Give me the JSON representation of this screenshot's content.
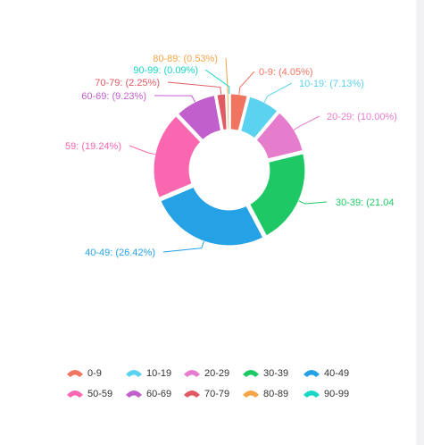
{
  "chart_data": {
    "type": "pie",
    "variant": "donut",
    "categories": [
      "0-9",
      "10-19",
      "20-29",
      "30-39",
      "40-49",
      "50-59",
      "60-69",
      "70-79",
      "80-89",
      "90-99"
    ],
    "values": [
      4.05,
      7.13,
      10.0,
      21.04,
      26.42,
      19.24,
      9.23,
      2.25,
      0.53,
      0.09
    ],
    "labels": [
      "0-9: (4.05%)",
      "10-19: (7.13%)",
      "20-29: (10.00%)",
      "30-39: (21.04",
      "40-49: (26.42%)",
      "59: (19.24%)",
      "60-69: (9.23%)",
      "70-79: (2.25%)",
      "80-89: (0.53%)",
      "90-99: (0.09%)"
    ],
    "colors": [
      "#f0745f",
      "#5bd3f0",
      "#e67ccc",
      "#1ec965",
      "#25a2e6",
      "#f967b1",
      "#c15fcc",
      "#e05a64",
      "#f5a547",
      "#17d7c5"
    ],
    "legend_position": "bottom",
    "title": ""
  },
  "legend": {
    "items": [
      "0-9",
      "10-19",
      "20-29",
      "30-39",
      "40-49",
      "50-59",
      "60-69",
      "70-79",
      "80-89",
      "90-99"
    ]
  }
}
